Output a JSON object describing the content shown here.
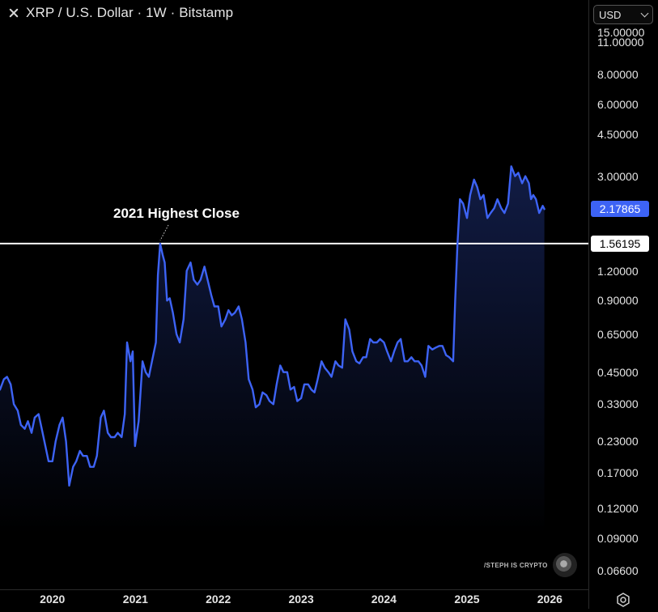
{
  "header": {
    "title": "XRP / U.S. Dollar · 1W · Bitstamp",
    "currency": "USD"
  },
  "colors": {
    "line": "#3d63f5",
    "level_line": "#ffffff",
    "background": "#000000"
  },
  "annotation": {
    "label": "2021 Highest Close"
  },
  "watermark": {
    "text": "/STEPH IS CRYPTO"
  },
  "chart_data": {
    "type": "area",
    "title": "XRP / U.S. Dollar · 1W · Bitstamp",
    "y_scale": "log",
    "grid": false,
    "ylim": [
      0.055,
      16.5
    ],
    "xlim": [
      "2019-05-15",
      "2026-06-20"
    ],
    "y_ticks": [
      "15.00000",
      "11.00000",
      "8.00000",
      "6.00000",
      "4.50000",
      "3.00000",
      "1.20000",
      "0.90000",
      "0.65000",
      "0.45000",
      "0.33000",
      "0.23000",
      "0.17000",
      "0.12000",
      "0.09000",
      "0.06600"
    ],
    "x_ticks": [
      "2020",
      "2021",
      "2022",
      "2023",
      "2024",
      "2025",
      "2026"
    ],
    "current_price": "2.17865",
    "level_price": "1.56195",
    "series": [
      {
        "points": [
          [
            "2019-05-15",
            0.38
          ],
          [
            "2019-06-01",
            0.42
          ],
          [
            "2019-06-15",
            0.43
          ],
          [
            "2019-07-01",
            0.4
          ],
          [
            "2019-07-15",
            0.33
          ],
          [
            "2019-08-01",
            0.31
          ],
          [
            "2019-08-15",
            0.27
          ],
          [
            "2019-09-01",
            0.26
          ],
          [
            "2019-09-15",
            0.28
          ],
          [
            "2019-10-01",
            0.25
          ],
          [
            "2019-10-15",
            0.29
          ],
          [
            "2019-11-01",
            0.3
          ],
          [
            "2019-11-15",
            0.26
          ],
          [
            "2019-12-01",
            0.22
          ],
          [
            "2019-12-15",
            0.19
          ],
          [
            "2020-01-01",
            0.19
          ],
          [
            "2020-01-15",
            0.23
          ],
          [
            "2020-02-01",
            0.27
          ],
          [
            "2020-02-15",
            0.29
          ],
          [
            "2020-03-01",
            0.23
          ],
          [
            "2020-03-15",
            0.15
          ],
          [
            "2020-04-01",
            0.18
          ],
          [
            "2020-04-15",
            0.19
          ],
          [
            "2020-05-01",
            0.21
          ],
          [
            "2020-05-15",
            0.2
          ],
          [
            "2020-06-01",
            0.2
          ],
          [
            "2020-06-15",
            0.18
          ],
          [
            "2020-07-01",
            0.18
          ],
          [
            "2020-07-15",
            0.2
          ],
          [
            "2020-08-01",
            0.29
          ],
          [
            "2020-08-15",
            0.31
          ],
          [
            "2020-09-01",
            0.25
          ],
          [
            "2020-09-15",
            0.24
          ],
          [
            "2020-10-01",
            0.24
          ],
          [
            "2020-10-15",
            0.25
          ],
          [
            "2020-11-01",
            0.24
          ],
          [
            "2020-11-15",
            0.3
          ],
          [
            "2020-11-25",
            0.6
          ],
          [
            "2020-12-10",
            0.5
          ],
          [
            "2020-12-20",
            0.55
          ],
          [
            "2020-12-30",
            0.22
          ],
          [
            "2021-01-15",
            0.28
          ],
          [
            "2021-02-01",
            0.5
          ],
          [
            "2021-02-15",
            0.45
          ],
          [
            "2021-03-01",
            0.43
          ],
          [
            "2021-03-15",
            0.5
          ],
          [
            "2021-04-01",
            0.6
          ],
          [
            "2021-04-10",
            1.15
          ],
          [
            "2021-04-20",
            1.56
          ],
          [
            "2021-05-01",
            1.4
          ],
          [
            "2021-05-10",
            1.3
          ],
          [
            "2021-05-20",
            0.9
          ],
          [
            "2021-06-01",
            0.92
          ],
          [
            "2021-06-15",
            0.8
          ],
          [
            "2021-07-01",
            0.65
          ],
          [
            "2021-07-15",
            0.6
          ],
          [
            "2021-08-01",
            0.75
          ],
          [
            "2021-08-15",
            1.2
          ],
          [
            "2021-09-01",
            1.3
          ],
          [
            "2021-09-15",
            1.1
          ],
          [
            "2021-10-01",
            1.05
          ],
          [
            "2021-10-15",
            1.1
          ],
          [
            "2021-11-01",
            1.25
          ],
          [
            "2021-11-15",
            1.1
          ],
          [
            "2021-12-01",
            0.95
          ],
          [
            "2021-12-15",
            0.85
          ],
          [
            "2022-01-01",
            0.85
          ],
          [
            "2022-01-15",
            0.7
          ],
          [
            "2022-02-01",
            0.75
          ],
          [
            "2022-02-15",
            0.82
          ],
          [
            "2022-03-01",
            0.78
          ],
          [
            "2022-03-15",
            0.8
          ],
          [
            "2022-04-01",
            0.85
          ],
          [
            "2022-04-15",
            0.75
          ],
          [
            "2022-05-01",
            0.6
          ],
          [
            "2022-05-15",
            0.42
          ],
          [
            "2022-06-01",
            0.38
          ],
          [
            "2022-06-15",
            0.32
          ],
          [
            "2022-07-01",
            0.33
          ],
          [
            "2022-07-15",
            0.37
          ],
          [
            "2022-08-01",
            0.36
          ],
          [
            "2022-08-15",
            0.34
          ],
          [
            "2022-09-01",
            0.33
          ],
          [
            "2022-09-15",
            0.4
          ],
          [
            "2022-10-01",
            0.48
          ],
          [
            "2022-10-15",
            0.45
          ],
          [
            "2022-11-01",
            0.45
          ],
          [
            "2022-11-15",
            0.38
          ],
          [
            "2022-12-01",
            0.39
          ],
          [
            "2022-12-15",
            0.34
          ],
          [
            "2023-01-01",
            0.35
          ],
          [
            "2023-01-15",
            0.4
          ],
          [
            "2023-02-01",
            0.4
          ],
          [
            "2023-02-15",
            0.38
          ],
          [
            "2023-03-01",
            0.37
          ],
          [
            "2023-03-15",
            0.42
          ],
          [
            "2023-04-01",
            0.5
          ],
          [
            "2023-04-15",
            0.47
          ],
          [
            "2023-05-01",
            0.45
          ],
          [
            "2023-05-15",
            0.43
          ],
          [
            "2023-06-01",
            0.5
          ],
          [
            "2023-06-15",
            0.48
          ],
          [
            "2023-07-01",
            0.47
          ],
          [
            "2023-07-15",
            0.75
          ],
          [
            "2023-08-01",
            0.68
          ],
          [
            "2023-08-15",
            0.55
          ],
          [
            "2023-09-01",
            0.5
          ],
          [
            "2023-09-15",
            0.49
          ],
          [
            "2023-10-01",
            0.52
          ],
          [
            "2023-10-15",
            0.52
          ],
          [
            "2023-11-01",
            0.62
          ],
          [
            "2023-11-15",
            0.6
          ],
          [
            "2023-12-01",
            0.6
          ],
          [
            "2023-12-15",
            0.62
          ],
          [
            "2024-01-01",
            0.6
          ],
          [
            "2024-01-15",
            0.55
          ],
          [
            "2024-02-01",
            0.5
          ],
          [
            "2024-02-15",
            0.55
          ],
          [
            "2024-03-01",
            0.6
          ],
          [
            "2024-03-15",
            0.62
          ],
          [
            "2024-04-01",
            0.5
          ],
          [
            "2024-04-15",
            0.5
          ],
          [
            "2024-05-01",
            0.52
          ],
          [
            "2024-05-15",
            0.5
          ],
          [
            "2024-06-01",
            0.5
          ],
          [
            "2024-06-15",
            0.48
          ],
          [
            "2024-07-01",
            0.43
          ],
          [
            "2024-07-15",
            0.58
          ],
          [
            "2024-08-01",
            0.56
          ],
          [
            "2024-08-15",
            0.57
          ],
          [
            "2024-09-01",
            0.58
          ],
          [
            "2024-09-15",
            0.58
          ],
          [
            "2024-10-01",
            0.53
          ],
          [
            "2024-10-15",
            0.52
          ],
          [
            "2024-11-01",
            0.5
          ],
          [
            "2024-11-10",
            0.9
          ],
          [
            "2024-11-20",
            1.55
          ],
          [
            "2024-12-01",
            2.4
          ],
          [
            "2024-12-15",
            2.3
          ],
          [
            "2025-01-01",
            2.0
          ],
          [
            "2025-01-15",
            2.5
          ],
          [
            "2025-02-01",
            2.9
          ],
          [
            "2025-02-15",
            2.7
          ],
          [
            "2025-03-01",
            2.4
          ],
          [
            "2025-03-15",
            2.5
          ],
          [
            "2025-04-01",
            2.0
          ],
          [
            "2025-04-15",
            2.1
          ],
          [
            "2025-05-01",
            2.2
          ],
          [
            "2025-05-15",
            2.4
          ],
          [
            "2025-06-01",
            2.2
          ],
          [
            "2025-06-15",
            2.1
          ],
          [
            "2025-07-01",
            2.3
          ],
          [
            "2025-07-15",
            3.3
          ],
          [
            "2025-08-01",
            3.0
          ],
          [
            "2025-08-15",
            3.1
          ],
          [
            "2025-09-01",
            2.8
          ],
          [
            "2025-09-15",
            3.0
          ],
          [
            "2025-10-01",
            2.8
          ],
          [
            "2025-10-10",
            2.4
          ],
          [
            "2025-10-20",
            2.5
          ],
          [
            "2025-11-01",
            2.4
          ],
          [
            "2025-11-15",
            2.1
          ],
          [
            "2025-12-01",
            2.25
          ],
          [
            "2025-12-08",
            2.18
          ]
        ]
      }
    ]
  }
}
